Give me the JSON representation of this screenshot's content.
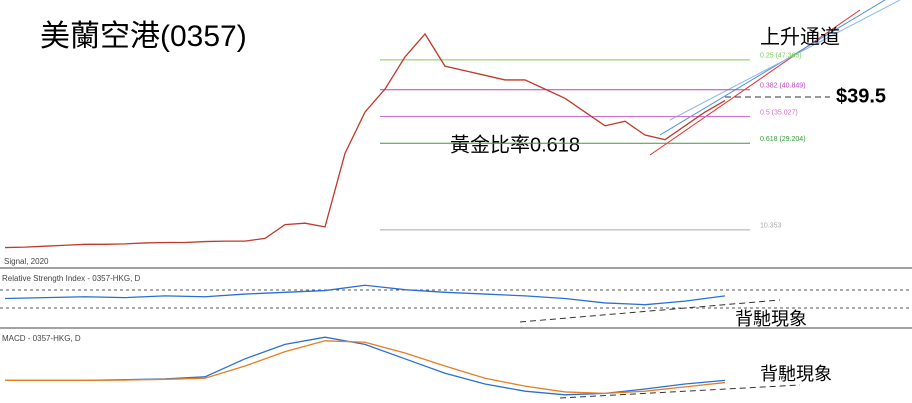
{
  "chart_data": [
    {
      "type": "line",
      "title": "美蘭空港(0357)",
      "footnote": "Signal, 2020",
      "series": [
        {
          "name": "0357-HKG",
          "color": "#c0392b",
          "values": [
            6.5,
            6.6,
            6.8,
            7,
            7.2,
            7.2,
            7.3,
            7.5,
            7.6,
            7.6,
            7.8,
            7.9,
            7.9,
            8.5,
            11.5,
            11.8,
            11,
            27,
            36,
            41,
            48,
            53,
            46,
            45,
            44,
            43,
            43,
            41,
            39,
            36,
            33,
            34,
            31,
            30,
            33,
            36,
            38.5
          ]
        }
      ],
      "ylim": [
        60.4,
        2.7
      ],
      "fib_levels": [
        {
          "value": 47.365,
          "label": "0.25 (47.365)",
          "color": "#7ccc5c"
        },
        {
          "value": 40.849,
          "label": "0.382 (40.849)",
          "color": "#c040c0"
        },
        {
          "value": 35.027,
          "label": "0.5 (35.027)",
          "color": "#d070d0"
        },
        {
          "value": 29.204,
          "label": "0.618 (29.204)",
          "color": "#3a9a3a"
        },
        {
          "value": 10.353,
          "label": "10.353",
          "color": "#aaaaaa"
        }
      ],
      "annotations": {
        "channel": "上升通道",
        "price": "$39.5",
        "golden": "黃金比率0.618"
      }
    },
    {
      "type": "line",
      "title": "Relative Strength Index - 0357-HKG, D",
      "series": [
        {
          "name": "RSI",
          "color": "#2a6fd6",
          "values": [
            55,
            56,
            57,
            56,
            58,
            57,
            60,
            62,
            64,
            70,
            65,
            62,
            60,
            58,
            55,
            50,
            48,
            52,
            58
          ]
        }
      ],
      "ylim": [
        85,
        25
      ],
      "annotation": "背馳現象"
    },
    {
      "type": "line",
      "title": "MACD - 0357-HKG, D",
      "series": [
        {
          "name": "MACD",
          "color": "#2a6fd6",
          "values": [
            0,
            0,
            0,
            0.1,
            0.2,
            0.5,
            3,
            5,
            6,
            5,
            3,
            1,
            -0.5,
            -1.5,
            -2,
            -1.8,
            -1.2,
            -0.5,
            0
          ]
        },
        {
          "name": "Signal",
          "color": "#e67e22",
          "values": [
            0,
            0,
            0,
            0.05,
            0.15,
            0.3,
            2,
            4,
            5.5,
            5.3,
            3.8,
            2,
            0.3,
            -0.8,
            -1.6,
            -1.8,
            -1.5,
            -0.9,
            -0.3
          ]
        }
      ],
      "ylim": [
        7,
        -3
      ],
      "annotation": "背馳現象"
    }
  ]
}
